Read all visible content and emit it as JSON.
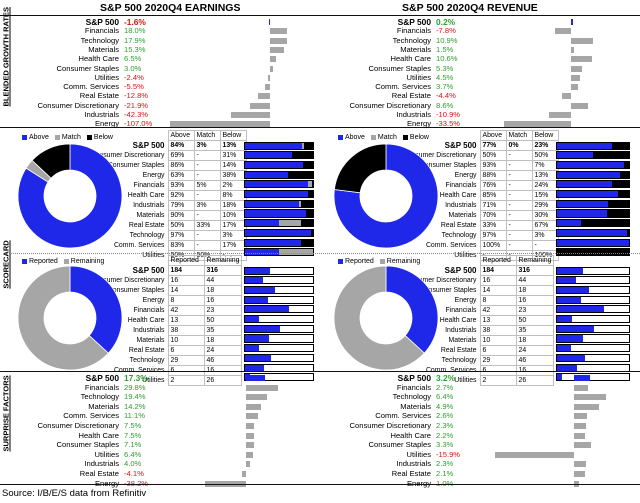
{
  "titles": {
    "earnings": "S&P 500 2020Q4 EARNINGS",
    "revenue": "S&P 500 2020Q4 REVENUE"
  },
  "side_labels": {
    "growth": "BLENDED GROWTH RATES",
    "scorecard": "SCORECARD",
    "surprise": "SURPRISE FACTORS"
  },
  "colors": {
    "blue": "#1f27e8",
    "gray": "#a6a6a6",
    "black": "#000000",
    "positive": "#2e9e2e",
    "negative": "#d11111"
  },
  "sectors": [
    "Financials",
    "Technology",
    "Materials",
    "Health Care",
    "Consumer Staples",
    "Utilities",
    "Comm. Services",
    "Real Estate",
    "Consumer Discretionary",
    "Industrials",
    "Energy"
  ],
  "scorecard_sectors": [
    "Consumer Discretionary",
    "Consumer Staples",
    "Energy",
    "Financials",
    "Health Care",
    "Industrials",
    "Materials",
    "Real Estate",
    "Technology",
    "Comm. Services",
    "Utilities"
  ],
  "legend": {
    "above": "Above",
    "match": "Match",
    "below": "Below",
    "reported": "Reported",
    "remaining": "Remaining"
  },
  "headers": {
    "sp500": "S&P 500",
    "above": "Above",
    "match": "Match",
    "below": "Below",
    "reported": "Reported",
    "remaining": "Remaining"
  },
  "source": "Source: I/B/E/S data from Refinitiv",
  "chart_data": [
    {
      "type": "bar",
      "title": "S&P 500 2020Q4 Earnings Blended Growth Rates",
      "unit": "%",
      "total": {
        "label": "S&P 500",
        "value": -1.6,
        "text": "-1.6%"
      },
      "categories": [
        "Financials",
        "Technology",
        "Materials",
        "Health Care",
        "Consumer Staples",
        "Utilities",
        "Comm. Services",
        "Real Estate",
        "Consumer Discretionary",
        "Industrials",
        "Energy"
      ],
      "values": [
        18.0,
        17.9,
        15.3,
        6.5,
        3.0,
        -2.4,
        -5.5,
        -12.8,
        -21.9,
        -42.3,
        -107.0
      ],
      "texts": [
        "18.0%",
        "17.9%",
        "15.3%",
        "6.5%",
        "3.0%",
        "-2.4%",
        "-5.5%",
        "-12.8%",
        "-21.9%",
        "-42.3%",
        "-107.0%"
      ]
    },
    {
      "type": "bar",
      "title": "S&P 500 2020Q4 Revenue Blended Growth Rates",
      "unit": "%",
      "total": {
        "label": "S&P 500",
        "value": 0.2,
        "text": "0.2%"
      },
      "categories": [
        "Financials",
        "Technology",
        "Materials",
        "Health Care",
        "Consumer Staples",
        "Utilities",
        "Comm. Services",
        "Real Estate",
        "Consumer Discretionary",
        "Industrials",
        "Energy"
      ],
      "values": [
        -7.8,
        10.9,
        1.5,
        10.6,
        5.3,
        4.5,
        3.7,
        -4.4,
        8.6,
        -10.9,
        -33.5
      ],
      "texts": [
        "-7.8%",
        "10.9%",
        "1.5%",
        "10.6%",
        "5.3%",
        "4.5%",
        "3.7%",
        "-4.4%",
        "8.6%",
        "-10.9%",
        "-33.5%"
      ]
    },
    {
      "type": "table",
      "title": "Earnings Scorecard",
      "total": {
        "label": "S&P 500",
        "above": "84%",
        "match": "3%",
        "below": "13%",
        "above_v": 84,
        "match_v": 3,
        "below_v": 13
      },
      "rows": [
        {
          "sector": "Consumer Discretionary",
          "above": "69%",
          "match": "-",
          "below": "31%",
          "above_v": 69,
          "match_v": 0,
          "below_v": 31
        },
        {
          "sector": "Consumer Staples",
          "above": "86%",
          "match": "-",
          "below": "14%",
          "above_v": 86,
          "match_v": 0,
          "below_v": 14
        },
        {
          "sector": "Energy",
          "above": "63%",
          "match": "-",
          "below": "38%",
          "above_v": 63,
          "match_v": 0,
          "below_v": 38
        },
        {
          "sector": "Financials",
          "above": "93%",
          "match": "5%",
          "below": "2%",
          "above_v": 93,
          "match_v": 5,
          "below_v": 2
        },
        {
          "sector": "Health Care",
          "above": "92%",
          "match": "-",
          "below": "8%",
          "above_v": 92,
          "match_v": 0,
          "below_v": 8
        },
        {
          "sector": "Industrials",
          "above": "79%",
          "match": "3%",
          "below": "18%",
          "above_v": 79,
          "match_v": 3,
          "below_v": 18
        },
        {
          "sector": "Materials",
          "above": "90%",
          "match": "-",
          "below": "10%",
          "above_v": 90,
          "match_v": 0,
          "below_v": 10
        },
        {
          "sector": "Real Estate",
          "above": "50%",
          "match": "33%",
          "below": "17%",
          "above_v": 50,
          "match_v": 33,
          "below_v": 17
        },
        {
          "sector": "Technology",
          "above": "97%",
          "match": "-",
          "below": "3%",
          "above_v": 97,
          "match_v": 0,
          "below_v": 3
        },
        {
          "sector": "Comm. Services",
          "above": "83%",
          "match": "-",
          "below": "17%",
          "above_v": 83,
          "match_v": 0,
          "below_v": 17
        },
        {
          "sector": "Utilities",
          "above": "50%",
          "match": "50%",
          "below": "-",
          "above_v": 50,
          "match_v": 50,
          "below_v": 0
        }
      ]
    },
    {
      "type": "table",
      "title": "Revenue Scorecard",
      "total": {
        "label": "S&P 500",
        "above": "77%",
        "match": "0%",
        "below": "23%",
        "above_v": 77,
        "match_v": 0,
        "below_v": 23
      },
      "rows": [
        {
          "sector": "Consumer Discretionary",
          "above": "50%",
          "match": "-",
          "below": "50%",
          "above_v": 50,
          "match_v": 0,
          "below_v": 50
        },
        {
          "sector": "Consumer Staples",
          "above": "93%",
          "match": "-",
          "below": "7%",
          "above_v": 93,
          "match_v": 0,
          "below_v": 7
        },
        {
          "sector": "Energy",
          "above": "88%",
          "match": "-",
          "below": "13%",
          "above_v": 88,
          "match_v": 0,
          "below_v": 13
        },
        {
          "sector": "Financials",
          "above": "76%",
          "match": "-",
          "below": "24%",
          "above_v": 76,
          "match_v": 0,
          "below_v": 24
        },
        {
          "sector": "Health Care",
          "above": "85%",
          "match": "-",
          "below": "15%",
          "above_v": 85,
          "match_v": 0,
          "below_v": 15
        },
        {
          "sector": "Industrials",
          "above": "71%",
          "match": "-",
          "below": "29%",
          "above_v": 71,
          "match_v": 0,
          "below_v": 29
        },
        {
          "sector": "Materials",
          "above": "70%",
          "match": "-",
          "below": "30%",
          "above_v": 70,
          "match_v": 0,
          "below_v": 30
        },
        {
          "sector": "Real Estate",
          "above": "33%",
          "match": "-",
          "below": "67%",
          "above_v": 33,
          "match_v": 0,
          "below_v": 67
        },
        {
          "sector": "Technology",
          "above": "97%",
          "match": "-",
          "below": "3%",
          "above_v": 97,
          "match_v": 0,
          "below_v": 3
        },
        {
          "sector": "Comm. Services",
          "above": "100%",
          "match": "-",
          "below": "-",
          "above_v": 100,
          "match_v": 0,
          "below_v": 0
        },
        {
          "sector": "Utilities",
          "above": "-",
          "match": "-",
          "below": "100%",
          "above_v": 0,
          "match_v": 0,
          "below_v": 100
        }
      ]
    },
    {
      "type": "table",
      "title": "Companies Reported",
      "total": {
        "label": "S&P 500",
        "reported": 184,
        "remaining": 316
      },
      "rows": [
        {
          "sector": "Consumer Discretionary",
          "reported": 16,
          "remaining": 44
        },
        {
          "sector": "Consumer Staples",
          "reported": 14,
          "remaining": 18
        },
        {
          "sector": "Energy",
          "reported": 8,
          "remaining": 16
        },
        {
          "sector": "Financials",
          "reported": 42,
          "remaining": 23
        },
        {
          "sector": "Health Care",
          "reported": 13,
          "remaining": 50
        },
        {
          "sector": "Industrials",
          "reported": 38,
          "remaining": 35
        },
        {
          "sector": "Materials",
          "reported": 10,
          "remaining": 18
        },
        {
          "sector": "Real Estate",
          "reported": 6,
          "remaining": 24
        },
        {
          "sector": "Technology",
          "reported": 29,
          "remaining": 46
        },
        {
          "sector": "Comm. Services",
          "reported": 6,
          "remaining": 16
        },
        {
          "sector": "Utilities",
          "reported": 2,
          "remaining": 26
        }
      ]
    },
    {
      "type": "bar",
      "title": "Earnings Surprise Factors",
      "unit": "%",
      "total": {
        "label": "S&P 500",
        "value": 17.3,
        "text": "17.3%"
      },
      "categories": [
        "Financials",
        "Technology",
        "Materials",
        "Comm. Services",
        "Consumer Discretionary",
        "Health Care",
        "Consumer Staples",
        "Utilities",
        "Industrials",
        "Real Estate",
        "Energy"
      ],
      "values": [
        29.8,
        19.4,
        14.2,
        11.1,
        7.5,
        7.5,
        7.1,
        6.4,
        4.0,
        -4.1,
        -38.2
      ],
      "texts": [
        "29.8%",
        "19.4%",
        "14.2%",
        "11.1%",
        "7.5%",
        "7.5%",
        "7.1%",
        "6.4%",
        "4.0%",
        "-4.1%",
        "-38.2%"
      ]
    },
    {
      "type": "bar",
      "title": "Revenue Surprise Factors",
      "unit": "%",
      "total": {
        "label": "S&P 500",
        "value": 3.2,
        "text": "3.2%"
      },
      "categories": [
        "Financials",
        "Technology",
        "Materials",
        "Comm. Services",
        "Consumer Discretionary",
        "Health Care",
        "Consumer Staples",
        "Utilities",
        "Industrials",
        "Real Estate",
        "Energy"
      ],
      "values": [
        2.7,
        6.4,
        4.9,
        2.6,
        2.3,
        2.2,
        3.3,
        -15.9,
        2.3,
        2.1,
        1.0
      ],
      "texts": [
        "2.7%",
        "6.4%",
        "4.9%",
        "2.6%",
        "2.3%",
        "2.2%",
        "3.3%",
        "-15.9%",
        "2.3%",
        "2.1%",
        "1.0%"
      ]
    }
  ]
}
